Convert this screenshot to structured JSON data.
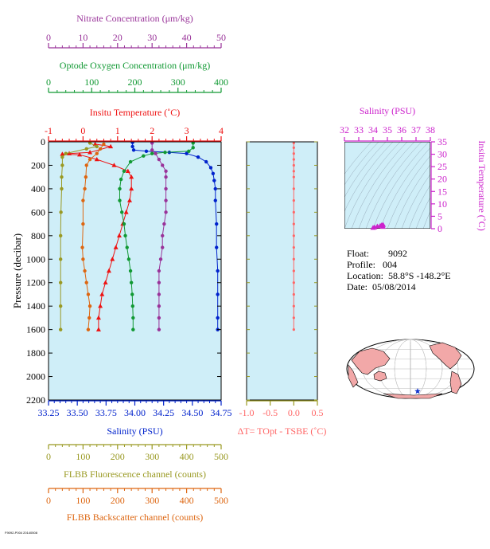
{
  "colors": {
    "panel_bg": "#cfeef8",
    "nitrate": "#993399",
    "oxygen": "#119933",
    "temperature": "#ee1111",
    "salinity": "#0022cc",
    "fluorescence": "#999922",
    "backscatter": "#dd6611",
    "delta_t": "#ff6666",
    "ts_axis": "#cc22cc"
  },
  "info": {
    "float_label": "Float:",
    "float_value": "9092",
    "profile_label": "Profile:",
    "profile_value": "004",
    "location_label": "Location:",
    "location_value": "58.8°S  -148.2°E",
    "date_label": "Date:",
    "date_value": "05/08/2014"
  },
  "footer_text": "F9092-P004 20140508",
  "chart_data": [
    {
      "type": "line",
      "ylabel": "Pressure (decibar)",
      "ylim": [
        2200,
        0
      ],
      "yticks": [
        "0",
        "200",
        "400",
        "600",
        "800",
        "1000",
        "1200",
        "1400",
        "1600",
        "1800",
        "2000",
        "2200"
      ],
      "axes": {
        "nitrate": {
          "label": "Nitrate Concentration (μm/kg)",
          "range": [
            0,
            50
          ],
          "ticks": [
            "0",
            "10",
            "20",
            "30",
            "40",
            "50"
          ]
        },
        "oxygen": {
          "label": "Optode Oxygen Concentration (μm/kg)",
          "range": [
            0,
            400
          ],
          "ticks": [
            "0",
            "100",
            "200",
            "300",
            "400"
          ]
        },
        "temperature": {
          "label": "Insitu Temperature (˚C)",
          "range": [
            -1,
            4
          ],
          "ticks": [
            "-1",
            "0",
            "1",
            "2",
            "3",
            "4"
          ]
        },
        "salinity": {
          "label": "Salinity (PSU)",
          "range": [
            33.25,
            34.75
          ],
          "ticks": [
            "33.25",
            "33.50",
            "33.75",
            "34.00",
            "34.25",
            "34.50",
            "34.75"
          ]
        },
        "fluorescence": {
          "label": "FLBB Fluorescence channel (counts)",
          "range": [
            0,
            500
          ],
          "ticks": [
            "0",
            "100",
            "200",
            "300",
            "400",
            "500"
          ]
        },
        "backscatter": {
          "label": "FLBB Backscatter channel (counts)",
          "range": [
            0,
            500
          ],
          "ticks": [
            "0",
            "100",
            "200",
            "300",
            "400",
            "500"
          ]
        }
      },
      "series": [
        {
          "key": "salinity",
          "marker": "circle",
          "points": [
            [
              33.98,
              5
            ],
            [
              33.98,
              40
            ],
            [
              33.99,
              70
            ],
            [
              34.1,
              80
            ],
            [
              34.3,
              90
            ],
            [
              34.45,
              100
            ],
            [
              34.55,
              130
            ],
            [
              34.62,
              170
            ],
            [
              34.66,
              220
            ],
            [
              34.68,
              270
            ],
            [
              34.69,
              330
            ],
            [
              34.7,
              400
            ],
            [
              34.7,
              500
            ],
            [
              34.71,
              700
            ],
            [
              34.71,
              900
            ],
            [
              34.72,
              1100
            ],
            [
              34.72,
              1300
            ],
            [
              34.72,
              1500
            ],
            [
              34.72,
              1600
            ]
          ]
        },
        {
          "key": "temperature",
          "marker": "triangle",
          "points": [
            [
              0.35,
              20
            ],
            [
              0.8,
              40
            ],
            [
              0.2,
              90
            ],
            [
              -0.4,
              100
            ],
            [
              -0.6,
              105
            ],
            [
              -0.1,
              110
            ],
            [
              0.4,
              150
            ],
            [
              0.9,
              200
            ],
            [
              1.3,
              250
            ],
            [
              1.4,
              300
            ],
            [
              1.4,
              400
            ],
            [
              1.35,
              500
            ],
            [
              1.25,
              600
            ],
            [
              1.15,
              700
            ],
            [
              1.05,
              800
            ],
            [
              0.95,
              900
            ],
            [
              0.85,
              1000
            ],
            [
              0.75,
              1100
            ],
            [
              0.65,
              1200
            ],
            [
              0.55,
              1300
            ],
            [
              0.5,
              1400
            ],
            [
              0.45,
              1500
            ],
            [
              0.45,
              1600
            ]
          ]
        },
        {
          "key": "oxygen",
          "marker": "circle",
          "points": [
            [
              335,
              10
            ],
            [
              335,
              50
            ],
            [
              325,
              80
            ],
            [
              270,
              90
            ],
            [
              240,
              100
            ],
            [
              220,
              120
            ],
            [
              190,
              170
            ],
            [
              175,
              250
            ],
            [
              168,
              320
            ],
            [
              165,
              400
            ],
            [
              165,
              500
            ],
            [
              170,
              600
            ],
            [
              175,
              700
            ],
            [
              178,
              800
            ],
            [
              182,
              900
            ],
            [
              186,
              1000
            ],
            [
              190,
              1100
            ],
            [
              192,
              1200
            ],
            [
              194,
              1300
            ],
            [
              195,
              1400
            ],
            [
              196,
              1500
            ],
            [
              196,
              1600
            ]
          ]
        },
        {
          "key": "nitrate",
          "marker": "circle",
          "points": [
            [
              30,
              10
            ],
            [
              30,
              70
            ],
            [
              31,
              100
            ],
            [
              32,
              150
            ],
            [
              33,
              200
            ],
            [
              34,
              250
            ],
            [
              34,
              300
            ],
            [
              34,
              400
            ],
            [
              34,
              500
            ],
            [
              34,
              600
            ],
            [
              33.5,
              700
            ],
            [
              33,
              800
            ],
            [
              33,
              900
            ],
            [
              32.5,
              1000
            ],
            [
              32,
              1100
            ],
            [
              32,
              1200
            ],
            [
              32,
              1300
            ],
            [
              32,
              1400
            ],
            [
              32,
              1500
            ],
            [
              32,
              1600
            ]
          ]
        },
        {
          "key": "fluorescence",
          "marker": "circle",
          "points": [
            [
              120,
              10
            ],
            [
              140,
              40
            ],
            [
              110,
              60
            ],
            [
              50,
              100
            ],
            [
              40,
              130
            ],
            [
              40,
              200
            ],
            [
              38,
              300
            ],
            [
              38,
              400
            ],
            [
              36,
              600
            ],
            [
              35,
              800
            ],
            [
              35,
              1000
            ],
            [
              35,
              1200
            ],
            [
              35,
              1400
            ],
            [
              35,
              1600
            ]
          ]
        },
        {
          "key": "backscatter",
          "marker": "circle",
          "points": [
            [
              160,
              20
            ],
            [
              150,
              60
            ],
            [
              140,
              100
            ],
            [
              120,
              150
            ],
            [
              110,
              200
            ],
            [
              108,
              300
            ],
            [
              105,
              400
            ],
            [
              100,
              500
            ],
            [
              100,
              700
            ],
            [
              98,
              900
            ],
            [
              100,
              1000
            ],
            [
              105,
              1100
            ],
            [
              110,
              1200
            ],
            [
              115,
              1300
            ],
            [
              120,
              1400
            ],
            [
              118,
              1500
            ],
            [
              115,
              1600
            ]
          ]
        }
      ]
    },
    {
      "type": "line",
      "xlabel": "ΔT= TOpt - TSBE (˚C)",
      "xlim": [
        -1.0,
        0.5
      ],
      "xticks": [
        "-1.0",
        "-0.5",
        "0.0",
        "0.5"
      ],
      "ylim": [
        2200,
        0
      ],
      "series": [
        {
          "key": "delta_t",
          "points": [
            [
              0.0,
              10
            ],
            [
              0.0,
              50
            ],
            [
              0.0,
              100
            ],
            [
              0.0,
              150
            ],
            [
              0.0,
              200
            ],
            [
              0.0,
              250
            ],
            [
              0.0,
              300
            ],
            [
              0.0,
              400
            ],
            [
              0.0,
              500
            ],
            [
              0.0,
              600
            ],
            [
              0.0,
              700
            ],
            [
              0.0,
              800
            ],
            [
              0.0,
              900
            ],
            [
              0.0,
              1000
            ],
            [
              0.0,
              1100
            ],
            [
              0.0,
              1200
            ],
            [
              0.0,
              1300
            ],
            [
              0.0,
              1400
            ],
            [
              0.0,
              1500
            ],
            [
              0.0,
              1600
            ]
          ]
        }
      ]
    },
    {
      "type": "scatter",
      "title": "Salinity (PSU)",
      "ylabel": "Insitu Temperature (˚C)",
      "xlim": [
        32,
        38
      ],
      "ylim": [
        0,
        35
      ],
      "xticks": [
        "32",
        "33",
        "34",
        "35",
        "36",
        "37",
        "38"
      ],
      "yticks": [
        "0",
        "5",
        "10",
        "15",
        "20",
        "25",
        "30",
        "35"
      ],
      "points": [
        [
          34.0,
          0.2
        ],
        [
          34.1,
          0.4
        ],
        [
          34.3,
          0.8
        ],
        [
          34.5,
          1.0
        ],
        [
          34.6,
          1.3
        ],
        [
          34.7,
          1.4
        ],
        [
          34.7,
          0.6
        ]
      ]
    }
  ]
}
